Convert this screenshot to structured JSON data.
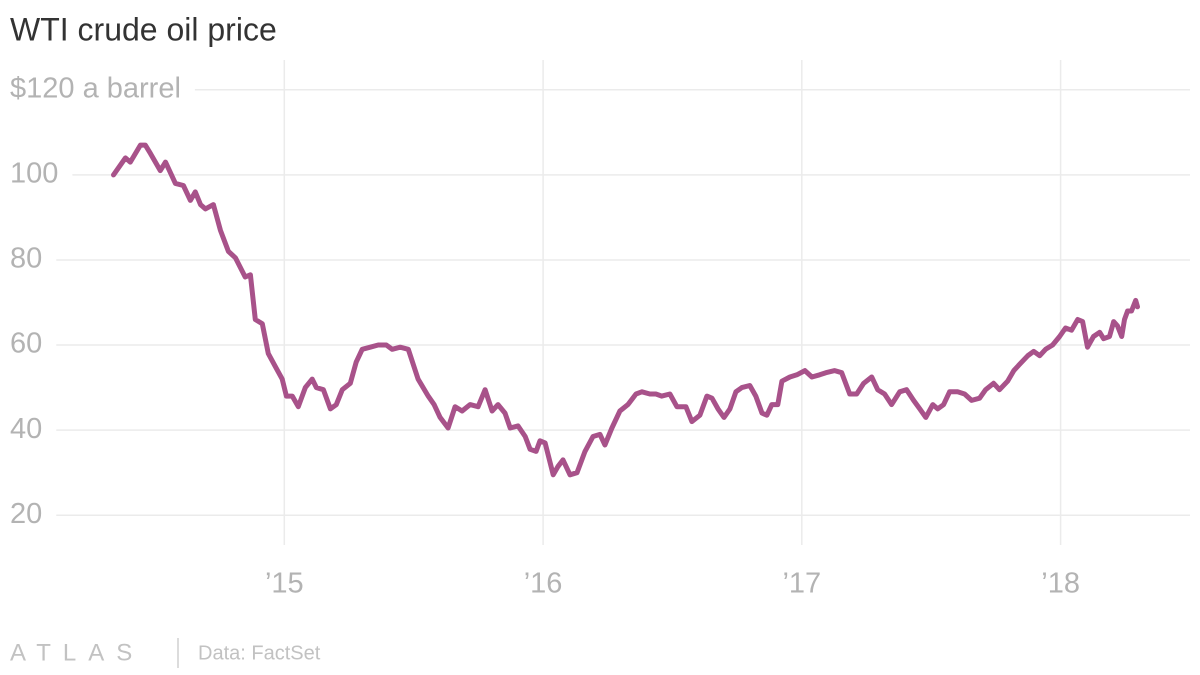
{
  "chart_data": {
    "type": "line",
    "title": "WTI crude oil price",
    "x": [
      2014.34,
      2014.386,
      2014.405,
      2014.444,
      2014.463,
      2014.483,
      2014.521,
      2014.541,
      2014.579,
      2014.61,
      2014.637,
      2014.656,
      2014.676,
      2014.695,
      2014.726,
      2014.753,
      2014.784,
      2014.811,
      2014.849,
      2014.869,
      2014.888,
      2014.915,
      2014.938,
      2014.965,
      2014.992,
      2015.008,
      2015.031,
      2015.054,
      2015.081,
      2015.108,
      2015.124,
      2015.151,
      2015.178,
      2015.201,
      2015.224,
      2015.255,
      2015.278,
      2015.301,
      2015.332,
      2015.363,
      2015.394,
      2015.417,
      2015.448,
      2015.479,
      2015.517,
      2015.556,
      2015.579,
      2015.602,
      2015.633,
      2015.66,
      2015.687,
      2015.718,
      2015.749,
      2015.776,
      2015.803,
      2015.826,
      2015.853,
      2015.873,
      2015.903,
      2015.931,
      2015.95,
      2015.973,
      2015.988,
      2016.008,
      2016.039,
      2016.058,
      2016.077,
      2016.104,
      2016.131,
      2016.162,
      2016.193,
      2016.22,
      2016.239,
      2016.266,
      2016.297,
      2016.328,
      2016.359,
      2016.382,
      2016.413,
      2016.436,
      2016.459,
      2016.49,
      2016.517,
      2016.552,
      2016.575,
      2016.606,
      2016.633,
      2016.653,
      2016.676,
      2016.699,
      2016.722,
      2016.745,
      2016.768,
      2016.799,
      2016.822,
      2016.846,
      2016.865,
      2016.884,
      2016.907,
      2016.923,
      2016.954,
      2016.981,
      2017.012,
      2017.039,
      2017.069,
      2017.093,
      2017.127,
      2017.154,
      2017.185,
      2017.212,
      2017.239,
      2017.27,
      2017.293,
      2017.32,
      2017.347,
      2017.378,
      2017.405,
      2017.432,
      2017.456,
      2017.479,
      2017.506,
      2017.525,
      2017.548,
      2017.571,
      2017.602,
      2017.629,
      2017.656,
      2017.687,
      2017.71,
      2017.741,
      2017.764,
      2017.795,
      2017.819,
      2017.842,
      2017.873,
      2017.896,
      2017.919,
      2017.942,
      2017.969,
      2017.996,
      2018.019,
      2018.042,
      2018.066,
      2018.085,
      2018.104,
      2018.127,
      2018.151,
      2018.166,
      2018.189,
      2018.205,
      2018.22,
      2018.236,
      2018.247,
      2018.259,
      2018.274,
      2018.29,
      2018.297
    ],
    "values": [
      100,
      104,
      103,
      107,
      107,
      105,
      101,
      103,
      98,
      97.5,
      94,
      96,
      93,
      92,
      93,
      87,
      82,
      80.5,
      76,
      76.5,
      66,
      65,
      58,
      55,
      52,
      48,
      48,
      45.5,
      50,
      52,
      50,
      49.5,
      45,
      46,
      49.5,
      51,
      56,
      59,
      59.5,
      60,
      60,
      59,
      59.5,
      59,
      52,
      48,
      46,
      43,
      40.5,
      45.5,
      44.5,
      46,
      45.5,
      49.5,
      44.5,
      46,
      44,
      40.5,
      41,
      38.5,
      35.5,
      35,
      37.5,
      37,
      29.5,
      31.5,
      33,
      29.5,
      30,
      35,
      38.5,
      39,
      36.5,
      40.5,
      44.5,
      46,
      48.5,
      49,
      48.5,
      48.5,
      48,
      48.5,
      45.5,
      45.5,
      42,
      43.5,
      48,
      47.5,
      45,
      43,
      45,
      49,
      50,
      50.5,
      48,
      44,
      43.5,
      46,
      46,
      51.5,
      52.5,
      53,
      54,
      52.5,
      53,
      53.5,
      54,
      53.5,
      48.5,
      48.5,
      51,
      52.5,
      49.5,
      48.5,
      46,
      49,
      49.5,
      47,
      45,
      43,
      46,
      45,
      46,
      49,
      49,
      48.5,
      47,
      47.5,
      49.5,
      51,
      49.5,
      51.5,
      54,
      55.5,
      57.5,
      58.5,
      57.5,
      59,
      60,
      62,
      64,
      63.5,
      66,
      65.5,
      59.5,
      62,
      63,
      61.5,
      62,
      65.5,
      64.5,
      62,
      66,
      68,
      68,
      70.5,
      69
    ],
    "color": "#a8528a",
    "xlim": [
      2013.94,
      2018.5
    ],
    "ylim": [
      13,
      127
    ],
    "xticks": [
      {
        "value": 2015,
        "label": "’15"
      },
      {
        "value": 2016,
        "label": "’16"
      },
      {
        "value": 2017,
        "label": "’17"
      },
      {
        "value": 2018,
        "label": "’18"
      }
    ],
    "yticks": [
      20,
      40,
      60,
      80,
      100,
      {
        "value": 120,
        "label": "$120 a barrel"
      }
    ],
    "grid": true
  },
  "footer": {
    "logo": "ATLAS",
    "source": "Data: FactSet"
  }
}
